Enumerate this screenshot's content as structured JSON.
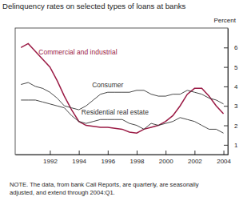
{
  "chart_data": {
    "type": "line",
    "title": "Delinquency rates on selected types of loans at banks",
    "y_label": "Percent",
    "note": [
      "NOTE. The data, from bank Call Reports, are quarterly, are seasonally",
      "adjusted, and extend through 2004:Q1."
    ],
    "x": [
      1990,
      1990.5,
      1991,
      1991.5,
      1992,
      1992.5,
      1993,
      1993.5,
      1994,
      1994.5,
      1995,
      1995.5,
      1996,
      1996.5,
      1997,
      1997.5,
      1998,
      1998.5,
      1999,
      1999.5,
      2000,
      2000.5,
      2001,
      2001.5,
      2002,
      2002.5,
      2003,
      2003.5,
      2004
    ],
    "series": [
      {
        "name": "Commercial and industrial",
        "color": "#9b1b45",
        "values": [
          6.0,
          6.2,
          5.8,
          5.4,
          5.0,
          4.3,
          3.5,
          2.8,
          2.2,
          2.0,
          1.95,
          1.9,
          1.9,
          1.85,
          1.8,
          1.65,
          1.6,
          1.8,
          1.9,
          2.0,
          2.2,
          2.5,
          3.0,
          3.6,
          3.9,
          3.9,
          3.5,
          3.0,
          2.6
        ]
      },
      {
        "name": "Consumer",
        "color": "#333333",
        "values": [
          4.1,
          4.2,
          4.0,
          3.9,
          3.7,
          3.4,
          3.0,
          2.9,
          2.8,
          3.0,
          3.3,
          3.6,
          3.7,
          3.7,
          3.7,
          3.7,
          3.8,
          3.8,
          3.6,
          3.5,
          3.5,
          3.6,
          3.6,
          3.8,
          3.7,
          3.6,
          3.4,
          3.3,
          3.1
        ]
      },
      {
        "name": "Residential real estate",
        "color": "#333333",
        "values": [
          3.3,
          3.3,
          3.3,
          3.2,
          3.1,
          3.0,
          2.9,
          2.5,
          2.2,
          2.1,
          2.2,
          2.3,
          2.3,
          2.3,
          2.3,
          2.1,
          2.0,
          1.8,
          2.1,
          2.0,
          2.1,
          2.2,
          2.4,
          2.3,
          2.2,
          2.0,
          1.8,
          1.8,
          1.6
        ]
      }
    ],
    "xlim": [
      1989.6,
      2004.3
    ],
    "xticks": [
      1992,
      1994,
      1996,
      1998,
      2000,
      2002,
      2004
    ],
    "ylim": [
      0.5,
      7
    ],
    "yticks": [
      1,
      2,
      3,
      4,
      5,
      6
    ],
    "grid": false
  }
}
